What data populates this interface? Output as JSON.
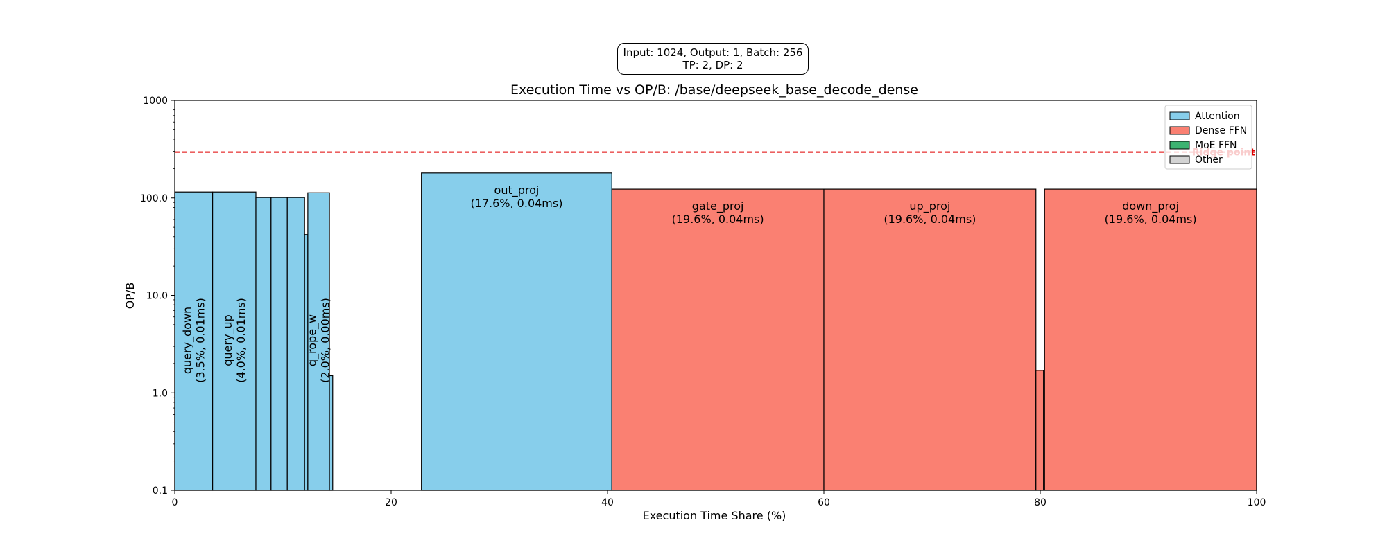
{
  "config_box": {
    "line1": "Input: 1024, Output: 1, Batch: 256",
    "line2": "TP: 2, DP: 2"
  },
  "chart_data": {
    "type": "bar",
    "title": "Execution Time vs OP/B: /base/deepseek_base_decode_dense",
    "xlabel": "Execution Time Share (%)",
    "ylabel": "OP/B",
    "xlim": [
      0,
      100
    ],
    "ylim": [
      0.1,
      1000
    ],
    "yscale": "log",
    "x_ticks": [
      "0",
      "20",
      "40",
      "60",
      "80",
      "100"
    ],
    "y_ticks": [
      "0.1",
      "1.0",
      "10.0",
      "100.0",
      "1000"
    ],
    "grid": false,
    "legend_position": "top-right",
    "legend": [
      {
        "name": "Attention",
        "color": "#87CEEB"
      },
      {
        "name": "Dense FFN",
        "color": "#FA8072"
      },
      {
        "name": "MoE FFN",
        "color": "#3CB371"
      },
      {
        "name": "Other",
        "color": "#D3D3D3"
      }
    ],
    "ridge_point": {
      "label": "Ridge point",
      "value": 295,
      "color": "#e00000"
    },
    "bars": [
      {
        "label": "query_down",
        "share": 3.5,
        "time_ms": "0.01ms",
        "start": 0.0,
        "width": 3.5,
        "opb": 115,
        "category": "Attention",
        "label_rotated": true,
        "label_text": "query_down\n(3.5%, 0.01ms)"
      },
      {
        "label": "query_up",
        "share": 4.0,
        "time_ms": "0.01ms",
        "start": 3.5,
        "width": 4.0,
        "opb": 115,
        "category": "Attention",
        "label_rotated": true,
        "label_text": "query_up\n(4.0%, 0.01ms)"
      },
      {
        "label": "",
        "share": 1.4,
        "start": 7.5,
        "width": 1.4,
        "opb": 101,
        "category": "Attention"
      },
      {
        "label": "",
        "share": 1.5,
        "start": 8.9,
        "width": 1.5,
        "opb": 101,
        "category": "Attention"
      },
      {
        "label": "",
        "share": 1.6,
        "start": 10.4,
        "width": 1.6,
        "opb": 101,
        "category": "Attention"
      },
      {
        "label": "",
        "share": 0.3,
        "start": 12.0,
        "width": 0.3,
        "opb": 42,
        "category": "Attention"
      },
      {
        "label": "q_rope_w",
        "share": 2.0,
        "time_ms": "0.00ms",
        "start": 12.3,
        "width": 2.0,
        "opb": 113,
        "category": "Attention",
        "label_rotated": true,
        "label_text": "q_rope_w\n(2.0%, 0.00ms)"
      },
      {
        "label": "",
        "share": 0.3,
        "start": 14.3,
        "width": 0.3,
        "opb": 1.5,
        "category": "Attention"
      },
      {
        "label": "out_proj",
        "share": 17.6,
        "time_ms": "0.04ms",
        "start": 22.8,
        "width": 17.6,
        "opb": 180,
        "category": "Attention",
        "label_rotated": false,
        "label_text": "out_proj\n(17.6%, 0.04ms)"
      },
      {
        "label": "gate_proj",
        "share": 19.6,
        "time_ms": "0.04ms",
        "start": 40.4,
        "width": 19.6,
        "opb": 123,
        "category": "Dense FFN",
        "label_rotated": false,
        "label_text": "gate_proj\n(19.6%, 0.04ms)"
      },
      {
        "label": "up_proj",
        "share": 19.6,
        "time_ms": "0.04ms",
        "start": 60.0,
        "width": 19.6,
        "opb": 123,
        "category": "Dense FFN",
        "label_rotated": false,
        "label_text": "up_proj\n(19.6%, 0.04ms)"
      },
      {
        "label": "",
        "share": 0.7,
        "start": 79.6,
        "width": 0.7,
        "opb": 1.7,
        "category": "Dense FFN"
      },
      {
        "label": "down_proj",
        "share": 19.6,
        "time_ms": "0.04ms",
        "start": 80.4,
        "width": 19.6,
        "opb": 123,
        "category": "Dense FFN",
        "label_rotated": false,
        "label_text": "down_proj\n(19.6%, 0.04ms)"
      }
    ]
  }
}
